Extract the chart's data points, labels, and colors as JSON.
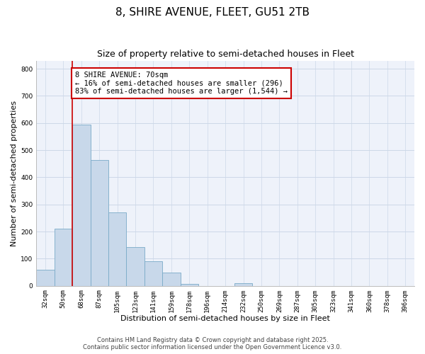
{
  "title": "8, SHIRE AVENUE, FLEET, GU51 2TB",
  "subtitle": "Size of property relative to semi-detached houses in Fleet",
  "xlabel": "Distribution of semi-detached houses by size in Fleet",
  "ylabel": "Number of semi-detached properties",
  "bar_labels": [
    "32sqm",
    "50sqm",
    "68sqm",
    "87sqm",
    "105sqm",
    "123sqm",
    "141sqm",
    "159sqm",
    "178sqm",
    "196sqm",
    "214sqm",
    "232sqm",
    "250sqm",
    "269sqm",
    "287sqm",
    "305sqm",
    "323sqm",
    "341sqm",
    "360sqm",
    "378sqm",
    "396sqm"
  ],
  "bar_values": [
    60,
    210,
    595,
    463,
    270,
    143,
    90,
    48,
    8,
    0,
    0,
    10,
    0,
    0,
    0,
    0,
    0,
    0,
    0,
    0,
    0
  ],
  "bar_color": "#c8d8ea",
  "bar_edge_color": "#7aaac8",
  "grid_color": "#ccd8e8",
  "bg_color": "#eef2fa",
  "vline_color": "#cc0000",
  "annotation_box_color": "#cc0000",
  "ylim": [
    0,
    830
  ],
  "yticks": [
    0,
    100,
    200,
    300,
    400,
    500,
    600,
    700,
    800
  ],
  "footer_line1": "Contains HM Land Registry data © Crown copyright and database right 2025.",
  "footer_line2": "Contains public sector information licensed under the Open Government Licence v3.0.",
  "title_fontsize": 11,
  "subtitle_fontsize": 9,
  "axis_label_fontsize": 8,
  "tick_fontsize": 6.5,
  "annotation_fontsize": 7.5,
  "footer_fontsize": 6
}
